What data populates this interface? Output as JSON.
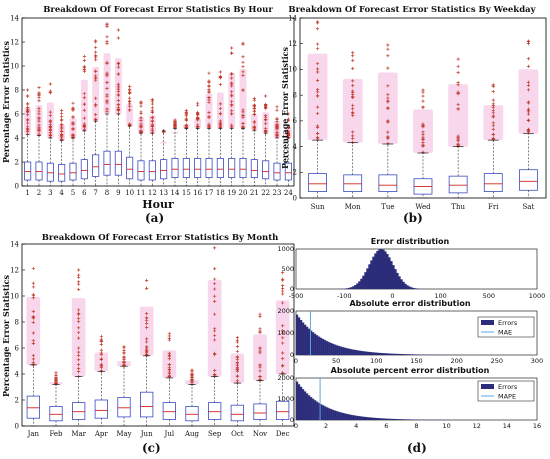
{
  "colors": {
    "box": "#3b4cc0",
    "median": "#d22020",
    "outlier": "#c0392b",
    "halo": "#f2b4dc",
    "hist": "#2b2c7a",
    "line": "#5aa8e0"
  },
  "chart_data": [
    {
      "id": "a",
      "type": "box",
      "title": "Breakdown Of Forecast Error Statistics By Hour",
      "ylabel": "Percentage Error Statistics",
      "xlabel": "Hour",
      "panel_label": "(a)",
      "ylim": [
        0,
        14
      ],
      "yticks": [
        0,
        2,
        4,
        6,
        8,
        10,
        12,
        14
      ],
      "categories": [
        "1",
        "2",
        "3",
        "4",
        "5",
        "6",
        "7",
        "8",
        "9",
        "10",
        "11",
        "12",
        "13",
        "14",
        "15",
        "16",
        "17",
        "18",
        "19",
        "20",
        "21",
        "22",
        "23",
        "24"
      ],
      "q1": [
        0.5,
        0.5,
        0.4,
        0.4,
        0.5,
        0.6,
        0.8,
        0.9,
        0.9,
        0.6,
        0.5,
        0.5,
        0.6,
        0.7,
        0.7,
        0.7,
        0.7,
        0.7,
        0.7,
        0.7,
        0.7,
        0.6,
        0.5,
        0.5
      ],
      "median": [
        1.2,
        1.2,
        1.1,
        1.0,
        1.1,
        1.3,
        1.6,
        1.8,
        1.8,
        1.4,
        1.2,
        1.2,
        1.3,
        1.4,
        1.4,
        1.4,
        1.4,
        1.4,
        1.4,
        1.4,
        1.3,
        1.2,
        1.1,
        1.1
      ],
      "q3": [
        2.0,
        2.0,
        1.9,
        1.8,
        1.9,
        2.2,
        2.6,
        2.9,
        2.9,
        2.4,
        2.1,
        2.1,
        2.2,
        2.3,
        2.3,
        2.3,
        2.3,
        2.3,
        2.3,
        2.3,
        2.2,
        2.1,
        1.9,
        1.9
      ],
      "whisker_high": [
        4.3,
        4.2,
        4.0,
        3.8,
        4.0,
        4.6,
        5.4,
        6.0,
        6.0,
        5.0,
        4.4,
        4.4,
        4.6,
        4.8,
        4.8,
        4.8,
        4.8,
        4.8,
        4.8,
        4.8,
        4.6,
        4.4,
        4.0,
        4.0
      ],
      "outlier_max": [
        8.0,
        8.2,
        8.5,
        6.3,
        6.9,
        10.8,
        12.1,
        13.5,
        13.0,
        8.3,
        7.0,
        7.2,
        4.5,
        5.5,
        6.3,
        6.9,
        9.4,
        9.5,
        11.5,
        11.9,
        7.3,
        7.5,
        6.6,
        6.0
      ]
    },
    {
      "id": "b",
      "type": "box",
      "title": "Breakdown Of Forecast Error Statistics By Weekday",
      "ylabel": "Percentage Error Statistics",
      "xlabel": "",
      "panel_label": "(b)",
      "ylim": [
        0,
        14
      ],
      "yticks": [
        0,
        2,
        4,
        6,
        8,
        10,
        12,
        14
      ],
      "categories": [
        "Sun",
        "Mon",
        "Tue",
        "Wed",
        "Thu",
        "Fri",
        "Sat"
      ],
      "q1": [
        0.5,
        0.5,
        0.5,
        0.3,
        0.4,
        0.5,
        0.6
      ],
      "median": [
        1.1,
        1.1,
        1.0,
        0.9,
        1.0,
        1.1,
        1.3
      ],
      "q3": [
        1.9,
        1.8,
        1.8,
        1.5,
        1.7,
        1.9,
        2.2
      ],
      "whisker_high": [
        4.5,
        4.3,
        4.2,
        3.5,
        4.0,
        4.5,
        5.0
      ],
      "outlier_max": [
        13.7,
        11.3,
        11.9,
        8.4,
        10.8,
        8.8,
        12.2
      ]
    },
    {
      "id": "c",
      "type": "box",
      "title": "Breakdown Of Forecast Error Statistics By Month",
      "ylabel": "Percentage Error Statistics",
      "xlabel": "",
      "panel_label": "(c)",
      "ylim": [
        0,
        14
      ],
      "yticks": [
        0,
        2,
        4,
        6,
        8,
        10,
        12,
        14
      ],
      "categories": [
        "Jan",
        "Feb",
        "Mar",
        "Apr",
        "May",
        "Jun",
        "Jul",
        "Aug",
        "Sep",
        "Oct",
        "Nov",
        "Dec"
      ],
      "q1": [
        0.6,
        0.4,
        0.5,
        0.6,
        0.7,
        0.7,
        0.5,
        0.4,
        0.5,
        0.4,
        0.5,
        0.5
      ],
      "median": [
        1.4,
        0.9,
        1.1,
        1.2,
        1.4,
        1.5,
        1.1,
        0.9,
        1.1,
        0.9,
        1.0,
        1.1
      ],
      "q3": [
        2.3,
        1.5,
        1.8,
        2.0,
        2.2,
        2.6,
        1.8,
        1.5,
        1.8,
        1.6,
        1.7,
        1.9
      ],
      "whisker_high": [
        4.7,
        3.2,
        3.8,
        4.2,
        4.6,
        5.4,
        3.7,
        3.2,
        3.8,
        3.3,
        3.5,
        4.0
      ],
      "outlier_max": [
        12.1,
        4.1,
        12.0,
        6.9,
        6.1,
        11.2,
        7.1,
        4.3,
        13.7,
        6.8,
        8.6,
        11.8
      ]
    },
    {
      "id": "d1",
      "type": "bar",
      "title": "Error distribution",
      "xlim": [
        -500,
        1000
      ],
      "ylim": [
        0,
        1000
      ],
      "yticks": [
        0,
        500,
        1000
      ],
      "xticks": [
        "-500",
        "-100",
        "0",
        "100",
        "500",
        "1000"
      ],
      "center": 30,
      "sd": 75,
      "peak": 1000
    },
    {
      "id": "d2",
      "type": "bar",
      "title": "Absolute error distribution",
      "xlim": [
        0,
        300
      ],
      "ylim": [
        0,
        2000
      ],
      "yticks": [
        0,
        1000,
        2000
      ],
      "xticks": [
        "0",
        "50",
        "100",
        "150",
        "200",
        "250",
        "300"
      ],
      "mae": 18,
      "decay": 35,
      "peak": 1900,
      "legend": [
        "Errors",
        "MAE"
      ]
    },
    {
      "id": "d3",
      "type": "bar",
      "title": "Absolute percent error distribution",
      "xlim": [
        0,
        16
      ],
      "ylim": [
        0,
        2000
      ],
      "yticks": [
        0,
        1000,
        2000
      ],
      "xticks": [
        "0",
        "2",
        "4",
        "6",
        "8",
        "10",
        "12",
        "14",
        "16"
      ],
      "mape": 1.6,
      "decay": 1.8,
      "peak": 1900,
      "legend": [
        "Errors",
        "MAPE"
      ],
      "panel_label": "(d)"
    }
  ]
}
